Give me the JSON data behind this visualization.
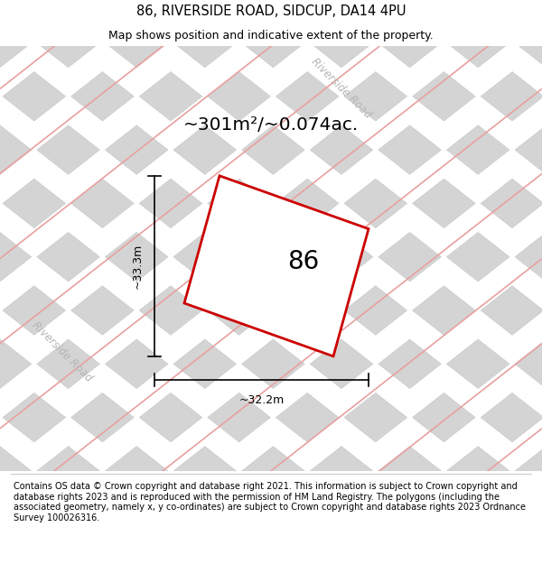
{
  "title_line1": "86, RIVERSIDE ROAD, SIDCUP, DA14 4PU",
  "title_line2": "Map shows position and indicative extent of the property.",
  "area_label": "~301m²/~0.074ac.",
  "property_number": "86",
  "width_label": "~32.2m",
  "height_label": "~33.3m",
  "footer_text": "Contains OS data © Crown copyright and database right 2021. This information is subject to Crown copyright and database rights 2023 and is reproduced with the permission of HM Land Registry. The polygons (including the associated geometry, namely x, y co-ordinates) are subject to Crown copyright and database rights 2023 Ordnance Survey 100026316.",
  "map_bg": "#ebebeb",
  "title_fontsize": 10.5,
  "subtitle_fontsize": 9,
  "road_label_1": "Riverside Road",
  "road_label_2": "Riverside Road",
  "polygon_color": "#cc0000",
  "diamond_color": "#d4d4d4",
  "diamond_edge": "#c8c8c8",
  "road_stripe_color": "#e8a0a0",
  "footer_fontsize": 7.0
}
